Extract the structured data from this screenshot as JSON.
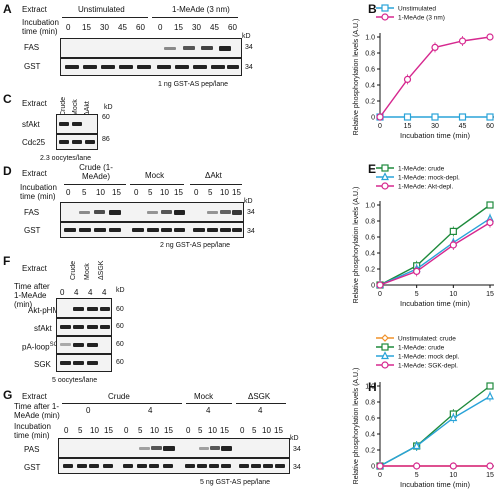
{
  "panels": {
    "A": "A",
    "B": "B",
    "C": "C",
    "D": "D",
    "E": "E",
    "F": "F",
    "G": "G",
    "H": "H"
  },
  "panelA": {
    "extract_label": "Extract",
    "incubation_label": "Incubation time (min)",
    "group1": "Unstimulated",
    "group2": "1-MeAde (3 nm)",
    "times": [
      "0",
      "15",
      "30",
      "45",
      "60",
      "0",
      "15",
      "30",
      "45",
      "60"
    ],
    "row1": "FAS",
    "row2": "GST",
    "kd": "kD",
    "mw1": "34",
    "mw2": "34",
    "caption": "1 ng GST-AS pep/lane"
  },
  "panelC": {
    "extract_label": "Extract",
    "lanes": [
      "Crude",
      "Mock",
      "ΔAkt"
    ],
    "kd": "kD",
    "row1": "sfAkt",
    "row2": "Cdc25",
    "mw1": "60",
    "mw2": "86",
    "caption": "2.3 oocytes/lane"
  },
  "panelD": {
    "extract_label": "Extract",
    "incubation_label": "Incubation time (min)",
    "group1": "Crude (1-MeAde)",
    "group2": "Mock",
    "group3": "ΔAkt",
    "times": [
      "0",
      "5",
      "10",
      "15",
      "0",
      "5",
      "10",
      "15",
      "0",
      "5",
      "10",
      "15"
    ],
    "row1": "FAS",
    "row2": "GST",
    "kd": "kD",
    "mw1": "34",
    "mw2": "34",
    "caption": "2 ng GST-AS pep/lane"
  },
  "panelF": {
    "extract_label": "Extract",
    "lanes": [
      "Crude",
      "Mock",
      "ΔSGK"
    ],
    "time_label": "Time after 1-MeAde (min)",
    "times": [
      "0",
      "4",
      "4",
      "4"
    ],
    "kd": "kD",
    "rows": [
      "Akt-pHM",
      "sfAkt",
      "pA-loop",
      "SGK"
    ],
    "superscript": "SGK",
    "mws": [
      "60",
      "60",
      "60",
      "60"
    ],
    "caption": "5 oocytes/lane"
  },
  "panelG": {
    "extract_label": "Extract",
    "group1": "Crude",
    "group2": "Mock",
    "group3": "ΔSGK",
    "time_label": "Time after 1-MeAde (min)",
    "time_values": [
      "0",
      "4",
      "4",
      "4"
    ],
    "incubation_label": "Incubation time (min)",
    "times": [
      "0",
      "5",
      "10",
      "15",
      "0",
      "5",
      "10",
      "15",
      "0",
      "5",
      "10",
      "15",
      "0",
      "5",
      "10",
      "15"
    ],
    "row1": "PAS",
    "row2": "GST",
    "kd": "kD",
    "mw1": "34",
    "mw2": "34",
    "caption": "5 ng GST-AS pep/lane"
  },
  "chart_data": [
    {
      "id": "B",
      "type": "line",
      "xlabel": "Incubation time (min)",
      "ylabel": "Relative phosphorylation levels (A.U.)",
      "x": [
        0,
        15,
        30,
        45,
        60
      ],
      "xlim": [
        0,
        60
      ],
      "ylim": [
        0,
        1.0
      ],
      "xticks": [
        "0",
        "15",
        "30",
        "45",
        "60"
      ],
      "yticks": [
        "0",
        "0.2",
        "0.4",
        "0.6",
        "0.8",
        "1.0"
      ],
      "legend_position": "top-left",
      "series": [
        {
          "name": "Unstimulated",
          "color": "#2aa3d8",
          "marker": "square",
          "values": [
            0,
            0,
            0,
            0,
            0
          ]
        },
        {
          "name": "1-MeAde (3 nm)",
          "color": "#d6288f",
          "marker": "circle",
          "values": [
            0,
            0.47,
            0.87,
            0.95,
            1.0
          ]
        }
      ]
    },
    {
      "id": "E",
      "type": "line",
      "xlabel": "Incubation time (min)",
      "ylabel": "Relative phosphorylation levels (A.U.)",
      "x": [
        0,
        5,
        10,
        15
      ],
      "xlim": [
        0,
        15
      ],
      "ylim": [
        0,
        1.0
      ],
      "xticks": [
        "0",
        "5",
        "10",
        "15"
      ],
      "yticks": [
        "0",
        "0.2",
        "0.4",
        "0.6",
        "0.8",
        "1.0"
      ],
      "legend_position": "top-left",
      "series": [
        {
          "name": "1-MeAde: crude",
          "color": "#1e8a3c",
          "marker": "square",
          "values": [
            0,
            0.24,
            0.67,
            1.0
          ]
        },
        {
          "name": "1-MeAde: mock-depl.",
          "color": "#2aa3d8",
          "marker": "triangle",
          "values": [
            0,
            0.2,
            0.53,
            0.83
          ]
        },
        {
          "name": "1-MeAde: Akt-depl.",
          "color": "#d6288f",
          "marker": "circle",
          "values": [
            0,
            0.17,
            0.5,
            0.78
          ]
        }
      ]
    },
    {
      "id": "H",
      "type": "line",
      "xlabel": "Incubation time (min)",
      "ylabel": "Relative phosphorylation levels (A.U.)",
      "x": [
        0,
        5,
        10,
        15
      ],
      "xlim": [
        0,
        15
      ],
      "ylim": [
        0,
        1.0
      ],
      "xticks": [
        "0",
        "5",
        "10",
        "15"
      ],
      "yticks": [
        "0",
        "0.2",
        "0.4",
        "0.6",
        "0.8",
        "1.0"
      ],
      "legend_position": "top-left",
      "series": [
        {
          "name": "Unstimulated: crude",
          "color": "#f0922a",
          "marker": "diamond",
          "values": [
            0,
            0,
            0,
            0
          ]
        },
        {
          "name": "1-MeAde: crude",
          "color": "#1e8a3c",
          "marker": "square",
          "values": [
            0,
            0.25,
            0.65,
            1.0
          ]
        },
        {
          "name": "1-MeAde: mock depl.",
          "color": "#2aa3d8",
          "marker": "triangle",
          "values": [
            0,
            0.25,
            0.6,
            0.87
          ]
        },
        {
          "name": "1-MeAde: SGK-depl.",
          "color": "#d6288f",
          "marker": "circle",
          "values": [
            0,
            0,
            0,
            0
          ]
        }
      ]
    }
  ]
}
